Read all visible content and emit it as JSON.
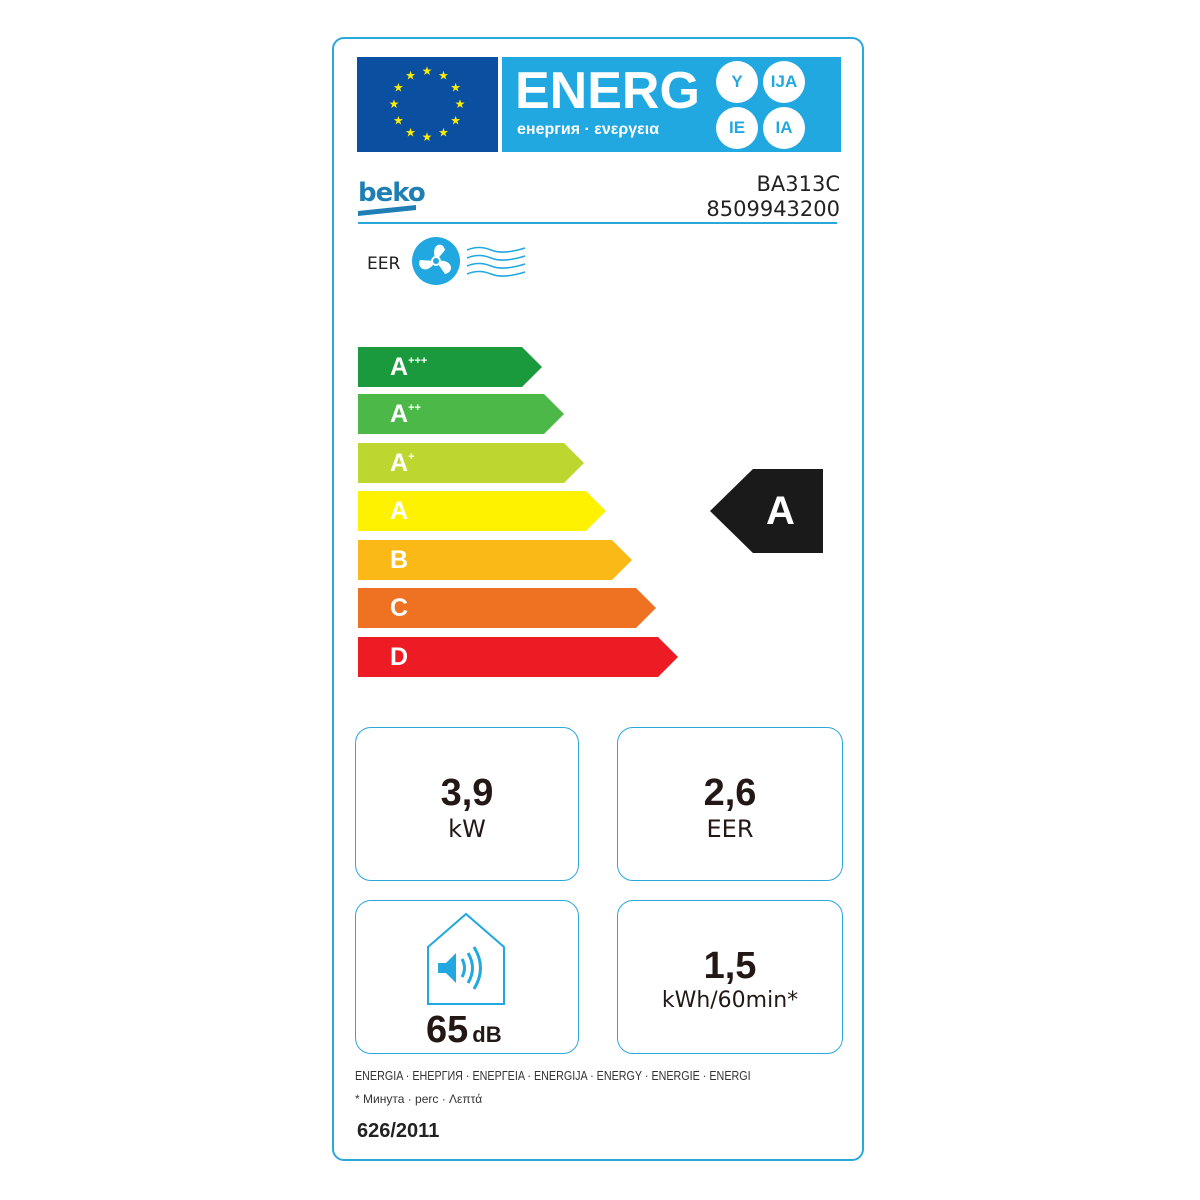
{
  "header": {
    "title": "ENERG",
    "subtitle": "енергия · ενεργεια",
    "suffixes": [
      "Y",
      "IJA",
      "IE",
      "IA"
    ],
    "flag_color": "#0a4fa0",
    "band_color": "#22a8e0"
  },
  "supplier": {
    "brand": "beko",
    "model": "BA313C",
    "code": "8509943200"
  },
  "function": {
    "label": "EER",
    "icon": "fan-airflow-icon"
  },
  "scale": [
    {
      "class": "A",
      "sup": "+++",
      "color": "#1a9a3c"
    },
    {
      "class": "A",
      "sup": "++",
      "color": "#4cb848"
    },
    {
      "class": "A",
      "sup": "+",
      "color": "#bed630"
    },
    {
      "class": "A",
      "sup": "",
      "color": "#fff200"
    },
    {
      "class": "B",
      "sup": "",
      "color": "#fbb917"
    },
    {
      "class": "C",
      "sup": "",
      "color": "#ef7122"
    },
    {
      "class": "D",
      "sup": "",
      "color": "#ed1c24"
    }
  ],
  "rating": "A",
  "specs": {
    "capacity": {
      "value": "3,9",
      "unit": "kW"
    },
    "eer": {
      "value": "2,6",
      "unit": "EER"
    },
    "noise": {
      "value": "65",
      "unit": "dB",
      "icon": "speaker-house-icon"
    },
    "consumption": {
      "value": "1,5",
      "unit": "kWh/60min*"
    }
  },
  "footer": {
    "languages": "ENERGIA · ЕНЕРГИЯ · ΕΝΕΡΓΕΙΑ · ENERGIJA · ENERGY · ENERGIE · ENERGI",
    "note": "* Минута · perc · Λεπτά",
    "regulation": "626/2011"
  }
}
